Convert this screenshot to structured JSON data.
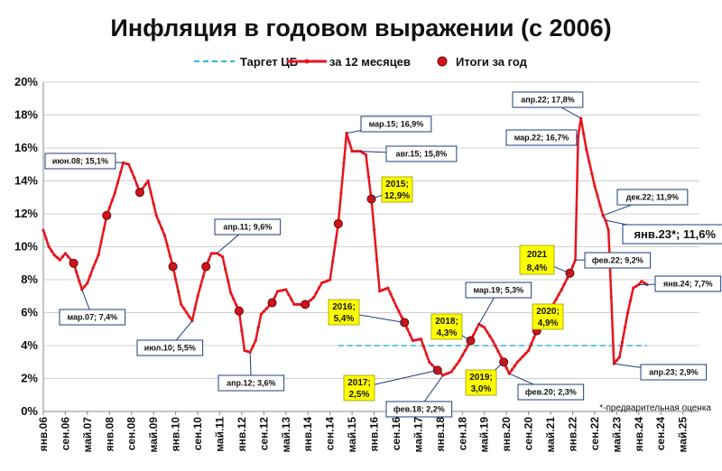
{
  "chart_data": {
    "type": "line",
    "title": "Инфляция в годовом выражении (с 2006)",
    "ylim": [
      0,
      20
    ],
    "yticks": [
      "0%",
      "2%",
      "4%",
      "6%",
      "8%",
      "10%",
      "12%",
      "14%",
      "16%",
      "18%",
      "20%"
    ],
    "grid": "horizontal",
    "legend_placement": "top-center",
    "x_tick_labels": [
      "янв.06",
      "сен.06",
      "май.07",
      "янв.08",
      "сен.08",
      "май.09",
      "янв.10",
      "сен.10",
      "май.11",
      "янв.12",
      "сен.12",
      "май.13",
      "янв.14",
      "сен.14",
      "май.15",
      "янв.16",
      "сен.16",
      "май.17",
      "янв.18",
      "сен.18",
      "май.19",
      "янв.20",
      "сен.20",
      "май.21",
      "янв.22",
      "сен.22",
      "май.23",
      "янв.24",
      "сен.24",
      "май.25"
    ],
    "legend": {
      "target": "Таргет ЦБ",
      "monthly": "за 12 месяцев",
      "yearly": "Итоги за год"
    },
    "series": [
      {
        "name": "за 12 месяцев",
        "color": "#e8141c",
        "points": [
          [
            "2006-01",
            11.0
          ],
          [
            "2006-03",
            10.0
          ],
          [
            "2006-05",
            9.5
          ],
          [
            "2006-07",
            9.2
          ],
          [
            "2006-09",
            9.6
          ],
          [
            "2006-12",
            9.0
          ],
          [
            "2007-03",
            7.4
          ],
          [
            "2007-05",
            7.8
          ],
          [
            "2007-07",
            8.7
          ],
          [
            "2007-09",
            9.5
          ],
          [
            "2007-12",
            11.9
          ],
          [
            "2008-03",
            13.3
          ],
          [
            "2008-06",
            15.1
          ],
          [
            "2008-08",
            15.0
          ],
          [
            "2008-10",
            14.2
          ],
          [
            "2008-12",
            13.3
          ],
          [
            "2009-03",
            14.0
          ],
          [
            "2009-06",
            11.9
          ],
          [
            "2009-09",
            10.7
          ],
          [
            "2009-12",
            8.8
          ],
          [
            "2010-03",
            6.5
          ],
          [
            "2010-07",
            5.5
          ],
          [
            "2010-09",
            7.0
          ],
          [
            "2010-12",
            8.8
          ],
          [
            "2011-02",
            9.6
          ],
          [
            "2011-04",
            9.6
          ],
          [
            "2011-06",
            9.4
          ],
          [
            "2011-09",
            7.2
          ],
          [
            "2011-12",
            6.1
          ],
          [
            "2012-02",
            3.7
          ],
          [
            "2012-04",
            3.6
          ],
          [
            "2012-06",
            4.3
          ],
          [
            "2012-08",
            5.9
          ],
          [
            "2012-12",
            6.6
          ],
          [
            "2013-02",
            7.3
          ],
          [
            "2013-05",
            7.4
          ],
          [
            "2013-08",
            6.5
          ],
          [
            "2013-12",
            6.5
          ],
          [
            "2014-03",
            6.9
          ],
          [
            "2014-06",
            7.8
          ],
          [
            "2014-09",
            8.0
          ],
          [
            "2014-12",
            11.4
          ],
          [
            "2015-03",
            16.9
          ],
          [
            "2015-05",
            15.8
          ],
          [
            "2015-08",
            15.8
          ],
          [
            "2015-10",
            15.6
          ],
          [
            "2015-12",
            12.9
          ],
          [
            "2016-03",
            7.3
          ],
          [
            "2016-06",
            7.5
          ],
          [
            "2016-09",
            6.4
          ],
          [
            "2016-12",
            5.4
          ],
          [
            "2017-03",
            4.3
          ],
          [
            "2017-06",
            4.4
          ],
          [
            "2017-09",
            3.0
          ],
          [
            "2017-12",
            2.5
          ],
          [
            "2018-02",
            2.2
          ],
          [
            "2018-05",
            2.4
          ],
          [
            "2018-08",
            3.1
          ],
          [
            "2018-12",
            4.3
          ],
          [
            "2019-03",
            5.3
          ],
          [
            "2019-05",
            5.1
          ],
          [
            "2019-08",
            4.3
          ],
          [
            "2019-12",
            3.0
          ],
          [
            "2020-02",
            2.3
          ],
          [
            "2020-05",
            3.0
          ],
          [
            "2020-09",
            3.7
          ],
          [
            "2020-12",
            4.9
          ],
          [
            "2021-03",
            5.8
          ],
          [
            "2021-06",
            6.5
          ],
          [
            "2021-09",
            7.4
          ],
          [
            "2021-12",
            8.4
          ],
          [
            "2022-02",
            9.2
          ],
          [
            "2022-03",
            16.7
          ],
          [
            "2022-04",
            17.8
          ],
          [
            "2022-06",
            15.9
          ],
          [
            "2022-09",
            13.7
          ],
          [
            "2022-12",
            11.9
          ],
          [
            "2023-01",
            11.6
          ],
          [
            "2023-02",
            11.0
          ],
          [
            "2023-04",
            2.9
          ],
          [
            "2023-06",
            3.3
          ],
          [
            "2023-09",
            6.0
          ],
          [
            "2023-11",
            7.5
          ],
          [
            "2024-01",
            7.7
          ],
          [
            "2024-02",
            7.9
          ],
          [
            "2024-04",
            7.7
          ]
        ]
      },
      {
        "name": "Таргет ЦБ",
        "color": "#2eb6d9",
        "value": 4.0,
        "from": "2014-12",
        "to": "2024-04"
      }
    ],
    "yearly_points": [
      [
        "2006-12",
        9.0
      ],
      [
        "2007-12",
        11.9
      ],
      [
        "2008-12",
        13.3
      ],
      [
        "2009-12",
        8.8
      ],
      [
        "2010-12",
        8.8
      ],
      [
        "2011-12",
        6.1
      ],
      [
        "2012-12",
        6.6
      ],
      [
        "2013-12",
        6.5
      ],
      [
        "2014-12",
        11.4
      ],
      [
        "2015-12",
        12.9
      ],
      [
        "2016-12",
        5.4
      ],
      [
        "2017-12",
        2.5
      ],
      [
        "2018-12",
        4.3
      ],
      [
        "2019-12",
        3.0
      ],
      [
        "2020-12",
        4.9
      ],
      [
        "2021-12",
        8.4
      ]
    ],
    "annotations": [
      {
        "text": "мар.07; 7,4%",
        "px": [
          2007,
          3
        ],
        "v": 7.4,
        "box": [
          66,
          343
        ]
      },
      {
        "text": "июн.08; 15,1%",
        "px": [
          2008,
          6
        ],
        "v": 15.1,
        "box": [
          50,
          170
        ]
      },
      {
        "text": "июл.10; 5,5%",
        "px": [
          2010,
          7
        ],
        "v": 5.5,
        "box": [
          152,
          377
        ]
      },
      {
        "text": "апр.11; 9,6%",
        "px": [
          2011,
          4
        ],
        "v": 9.6,
        "box": [
          238,
          243
        ]
      },
      {
        "text": "апр.12; 3,6%",
        "px": [
          2012,
          4
        ],
        "v": 3.6,
        "box": [
          242,
          416
        ]
      },
      {
        "text": "мар.15; 16,9%",
        "px": [
          2015,
          3
        ],
        "v": 16.9,
        "box": [
          400,
          129
        ]
      },
      {
        "text": "авг.15; 15,8%",
        "px": [
          2015,
          8
        ],
        "v": 15.8,
        "box": [
          428,
          162
        ]
      },
      {
        "text": "фев.18; 2,2%",
        "px": [
          2018,
          2
        ],
        "v": 2.2,
        "box": [
          428,
          445
        ]
      },
      {
        "text": "мар.19; 5,3%",
        "px": [
          2019,
          3
        ],
        "v": 5.3,
        "box": [
          516,
          313
        ]
      },
      {
        "text": "фев.20; 2,3%",
        "px": [
          2020,
          2
        ],
        "v": 2.3,
        "box": [
          574,
          426
        ]
      },
      {
        "text": "фев.22; 9,2%",
        "px": [
          2022,
          2
        ],
        "v": 9.2,
        "box": [
          648,
          280
        ]
      },
      {
        "text": "мар.22; 16,7%",
        "px": [
          2022,
          3
        ],
        "v": 16.7,
        "box": [
          561,
          144
        ]
      },
      {
        "text": "апр.22; 17,8%",
        "px": [
          2022,
          4
        ],
        "v": 17.8,
        "box": [
          568,
          102
        ]
      },
      {
        "text": "дек.22; 11,9%",
        "px": [
          2022,
          12
        ],
        "v": 11.9,
        "box": [
          684,
          210
        ]
      },
      {
        "text": "апр.23; 2,9%",
        "px": [
          2023,
          4
        ],
        "v": 2.9,
        "box": [
          710,
          404
        ]
      },
      {
        "text": "янв.24; 7,7%",
        "px": [
          2024,
          1
        ],
        "v": 7.7,
        "box": [
          726,
          306
        ]
      }
    ],
    "big_annotation": {
      "text": "янв.23*; 11,6%",
      "px": [
        2023,
        1
      ],
      "v": 11.6,
      "box": [
        690,
        249
      ]
    },
    "yearly_labels": [
      {
        "line1": "2015;",
        "line2": "12,9%",
        "px": [
          2015,
          12
        ],
        "v": 12.9,
        "box": [
          423,
          196
        ]
      },
      {
        "line1": "2016;",
        "line2": "5,4%",
        "px": [
          2016,
          12
        ],
        "v": 5.4,
        "box": [
          364,
          332
        ]
      },
      {
        "line1": "2017;",
        "line2": "2,5%",
        "px": [
          2017,
          12
        ],
        "v": 2.5,
        "box": [
          381,
          416
        ]
      },
      {
        "line1": "2018;",
        "line2": "4,3%",
        "px": [
          2018,
          12
        ],
        "v": 4.3,
        "box": [
          478,
          348
        ]
      },
      {
        "line1": "2019;",
        "line2": "3,0%",
        "px": [
          2019,
          12
        ],
        "v": 3.0,
        "box": [
          516,
          410
        ]
      },
      {
        "line1": "2020;",
        "line2": "4,9%",
        "px": [
          2020,
          12
        ],
        "v": 4.9,
        "box": [
          590,
          337
        ]
      },
      {
        "line1": "2021",
        "line2": "8,4%",
        "px": [
          2021,
          12
        ],
        "v": 8.4,
        "box": [
          576,
          272
        ],
        "large": true
      }
    ],
    "footnote": "*-предварительная оценка"
  }
}
